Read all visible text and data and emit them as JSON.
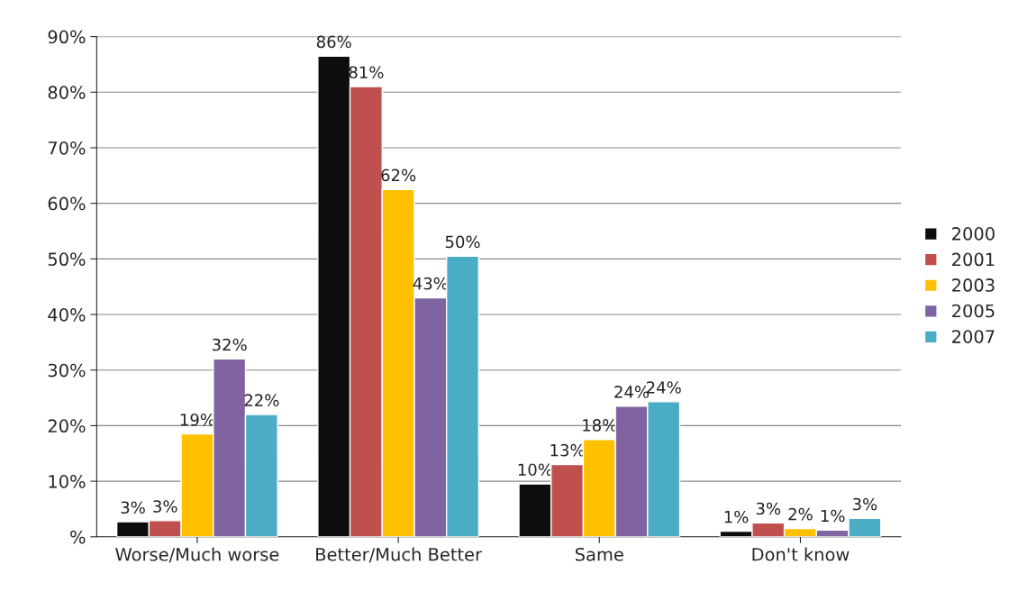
{
  "chart_data": {
    "type": "bar",
    "categories": [
      "Worse/Much worse",
      "Better/Much Better",
      "Same",
      "Don't know"
    ],
    "series": [
      {
        "name": "2000",
        "color": "#0d0d0d",
        "values": [
          2.7,
          86.5,
          9.5,
          1.0
        ],
        "value_labels": [
          "3%",
          "86%",
          "10%",
          "1%"
        ]
      },
      {
        "name": "2001",
        "color": "#c0504d",
        "values": [
          2.9,
          81,
          13,
          2.5
        ],
        "value_labels": [
          "3%",
          "81%",
          "13%",
          "3%"
        ]
      },
      {
        "name": "2003",
        "color": "#ffc000",
        "values": [
          18.5,
          62.5,
          17.5,
          1.5
        ],
        "value_labels": [
          "19%",
          "62%",
          "18%",
          "2%"
        ]
      },
      {
        "name": "2005",
        "color": "#8064a2",
        "values": [
          32,
          43,
          23.5,
          1.2
        ],
        "value_labels": [
          "32%",
          "43%",
          "24%",
          "1%"
        ]
      },
      {
        "name": "2007",
        "color": "#4bacc6",
        "values": [
          22,
          50.5,
          24.3,
          3.3
        ],
        "value_labels": [
          "22%",
          "50%",
          "24%",
          "3%"
        ]
      }
    ],
    "ylim": [
      0,
      90
    ],
    "yticks": [
      {
        "value": 0,
        "label": "%"
      },
      {
        "value": 10,
        "label": "10%"
      },
      {
        "value": 20,
        "label": "20%"
      },
      {
        "value": 30,
        "label": "30%"
      },
      {
        "value": 40,
        "label": "40%"
      },
      {
        "value": 50,
        "label": "50%"
      },
      {
        "value": 60,
        "label": "60%"
      },
      {
        "value": 70,
        "label": "70%"
      },
      {
        "value": 80,
        "label": "80%"
      },
      {
        "value": 90,
        "label": "90%"
      }
    ],
    "grid": "y",
    "legend": "right"
  }
}
